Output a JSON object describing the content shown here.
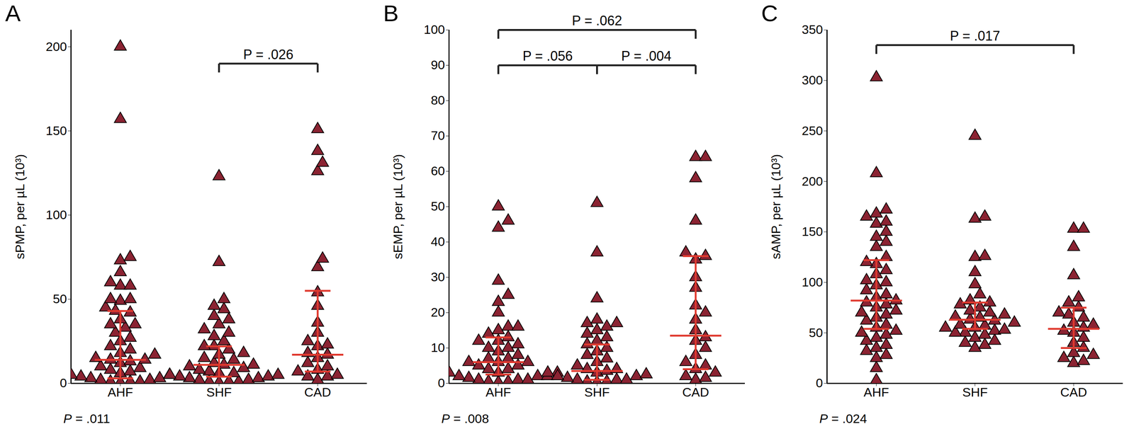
{
  "chart_data": [
    {
      "type": "strip",
      "title": "A",
      "y_label": "sPMP, per µL (10³)",
      "categories": [
        "AHF",
        "SHF",
        "CAD"
      ],
      "values": [
        [
          200,
          157,
          75,
          73,
          66,
          60,
          58,
          58,
          50,
          50,
          49,
          45,
          43,
          42,
          38,
          35,
          35,
          33,
          30,
          27,
          25,
          22,
          20,
          18,
          17,
          15,
          14,
          14,
          13,
          12,
          10,
          9,
          8,
          7,
          6,
          5,
          5,
          4,
          3,
          3,
          2,
          2,
          1,
          1,
          1,
          0.5
        ],
        [
          123,
          72,
          50,
          46,
          44,
          40,
          38,
          35,
          32,
          30,
          28,
          25,
          22,
          22,
          20,
          18,
          17,
          15,
          14,
          12,
          11,
          11,
          10,
          9,
          8,
          7,
          6,
          6,
          5,
          5,
          4,
          4,
          3,
          3,
          2,
          2,
          1,
          1,
          1,
          0.5
        ],
        [
          151,
          138,
          131,
          126,
          74,
          69,
          54,
          46,
          36,
          30,
          25,
          23,
          22,
          18,
          17,
          15,
          12,
          10,
          8,
          7,
          5,
          4,
          4,
          2
        ]
      ],
      "median": [
        14,
        11,
        17
      ],
      "q1": [
        3,
        4,
        7
      ],
      "q3": [
        43,
        22,
        55
      ],
      "color": "#8b2332",
      "error_color": "#e03a2f",
      "ylim": [
        0,
        210
      ],
      "yticks": [
        0,
        50,
        100,
        150,
        200
      ],
      "comparisons": [
        {
          "from": "SHF",
          "to": "CAD",
          "label": "P = .026",
          "y": 190
        }
      ],
      "annotation": "P = .011"
    },
    {
      "type": "strip",
      "title": "B",
      "y_label": "sEMP, per µL (10³)",
      "categories": [
        "AHF",
        "SHF",
        "CAD"
      ],
      "values": [
        [
          50,
          46,
          44,
          29,
          25,
          23,
          20,
          16,
          16,
          15,
          14,
          13,
          12,
          12,
          11,
          10,
          10,
          9,
          8,
          7,
          7,
          6,
          6,
          6,
          5,
          5,
          4,
          4,
          3,
          3,
          3,
          2,
          2,
          2,
          1.5,
          1,
          1,
          1,
          0.5,
          0.5,
          0.3
        ],
        [
          51,
          37,
          24,
          18,
          17,
          17,
          16,
          15,
          14,
          13,
          12,
          11,
          10,
          9,
          8,
          7,
          6,
          5,
          4,
          4,
          3.5,
          3,
          3,
          2.5,
          2,
          2,
          1.5,
          1,
          1,
          1,
          0.5,
          0.5,
          0.3
        ],
        [
          64,
          64,
          58,
          46,
          37,
          36,
          35,
          30,
          27,
          22,
          20,
          18,
          15,
          13,
          12,
          10,
          8,
          6,
          5,
          4,
          3,
          2,
          1.5,
          1
        ]
      ],
      "median": [
        6,
        3.5,
        13.5
      ],
      "q1": [
        2.5,
        1,
        4
      ],
      "q3": [
        13,
        11,
        36
      ],
      "color": "#8b2332",
      "error_color": "#e03a2f",
      "ylim": [
        0,
        100
      ],
      "yticks": [
        0,
        10,
        20,
        30,
        40,
        50,
        60,
        70,
        80,
        90,
        100
      ],
      "comparisons": [
        {
          "from": "AHF",
          "to": "SHF",
          "label": "P = .056",
          "y": 90
        },
        {
          "from": "SHF",
          "to": "CAD",
          "label": "P = .004",
          "y": 90
        },
        {
          "from": "AHF",
          "to": "CAD",
          "label": "P = .062",
          "y": 100
        }
      ],
      "annotation": "P = .008"
    },
    {
      "type": "strip",
      "title": "C",
      "y_label": "sAMP, per µL (10³)",
      "categories": [
        "AHF",
        "SHF",
        "CAD"
      ],
      "values": [
        [
          303,
          208,
          172,
          168,
          165,
          160,
          158,
          150,
          145,
          140,
          135,
          125,
          120,
          118,
          112,
          108,
          102,
          100,
          97,
          92,
          88,
          85,
          82,
          80,
          78,
          75,
          72,
          70,
          68,
          65,
          62,
          58,
          55,
          52,
          50,
          48,
          45,
          42,
          38,
          35,
          32,
          28,
          25,
          15,
          3
        ],
        [
          245,
          165,
          163,
          126,
          125,
          110,
          98,
          88,
          82,
          80,
          78,
          75,
          72,
          70,
          68,
          66,
          65,
          63,
          62,
          60,
          58,
          57,
          55,
          55,
          53,
          52,
          50,
          50,
          48,
          45,
          42,
          40,
          38,
          35
        ],
        [
          153,
          153,
          135,
          107,
          85,
          80,
          75,
          70,
          68,
          65,
          60,
          58,
          55,
          52,
          50,
          45,
          40,
          35,
          30,
          28,
          25,
          22,
          20
        ]
      ],
      "median": [
        82,
        63,
        54
      ],
      "q1": [
        54,
        54,
        35
      ],
      "q3": [
        122,
        80,
        75
      ],
      "color": "#8b2332",
      "error_color": "#e03a2f",
      "ylim": [
        0,
        350
      ],
      "yticks": [
        0,
        50,
        100,
        150,
        200,
        250,
        300,
        350
      ],
      "comparisons": [
        {
          "from": "AHF",
          "to": "CAD",
          "label": "P = .017",
          "y": 335
        }
      ],
      "annotation": "P = .024"
    }
  ]
}
